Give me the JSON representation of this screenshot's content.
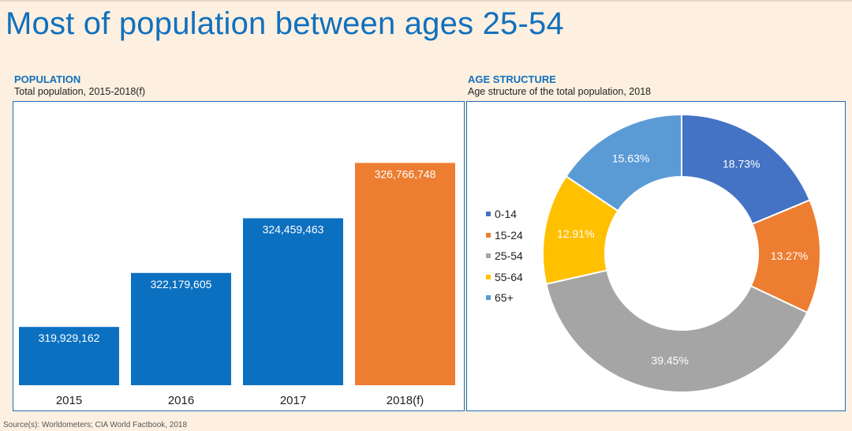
{
  "title": "Most of population between ages 25-54",
  "source": "Source(s): Worldometers; CIA World Factbook, 2018",
  "population": {
    "heading": "POPULATION",
    "subtitle": "Total population, 2015-2018(f)"
  },
  "age_structure": {
    "heading": "AGE STRUCTURE",
    "subtitle": "Age structure of the total population, 2018"
  },
  "colors": {
    "title": "#1270bd",
    "bar_actual": "#0c70c0",
    "bar_forecast": "#ed7d31",
    "age_0_14": "#4472c4",
    "age_15_24": "#ed7d31",
    "age_25_54": "#a5a5a5",
    "age_55_64": "#ffc000",
    "age_65_plus": "#5b9bd5"
  },
  "chart_data": [
    {
      "type": "bar",
      "title": "POPULATION",
      "subtitle": "Total population, 2015-2018(f)",
      "categories": [
        "2015",
        "2016",
        "2017",
        "2018(f)"
      ],
      "values": [
        319929162,
        322179605,
        324459463,
        326766748
      ],
      "value_labels": [
        "319,929,162",
        "322,179,605",
        "324,459,463",
        "326,766,748"
      ],
      "bar_colors": [
        "#0c70c0",
        "#0c70c0",
        "#0c70c0",
        "#ed7d31"
      ],
      "xlabel": "",
      "ylabel": "",
      "ylim": [
        317500000,
        327700000
      ],
      "grid": false,
      "legend": "none"
    },
    {
      "type": "pie",
      "style": "donut",
      "title": "AGE STRUCTURE",
      "subtitle": "Age structure of the total population, 2018",
      "categories": [
        "0-14",
        "15-24",
        "25-54",
        "55-64",
        "65+"
      ],
      "values": [
        18.73,
        13.27,
        39.45,
        12.91,
        15.63
      ],
      "value_labels": [
        "18.73%",
        "13.27%",
        "39.45%",
        "12.91%",
        "15.63%"
      ],
      "colors": [
        "#4472c4",
        "#ed7d31",
        "#a5a5a5",
        "#ffc000",
        "#5b9bd5"
      ],
      "legend": "left"
    }
  ]
}
